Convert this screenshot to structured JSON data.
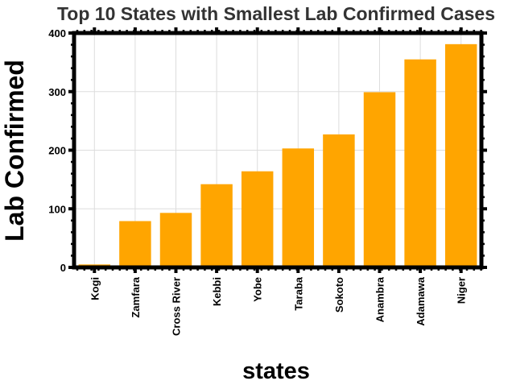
{
  "chart_data": {
    "type": "bar",
    "title": "Top 10 States with Smallest Lab Confirmed Cases",
    "xlabel": "states",
    "ylabel": "Lab Confirmed",
    "categories": [
      "Kogi",
      "Zamfara",
      "Cross River",
      "Kebbi",
      "Yobe",
      "Taraba",
      "Sokoto",
      "Anambra",
      "Adamawa",
      "Niger"
    ],
    "values": [
      5,
      79,
      93,
      142,
      164,
      203,
      227,
      299,
      355,
      381
    ],
    "ylim": [
      0,
      400
    ],
    "yticks": [
      "0",
      "100",
      "200",
      "300",
      "400"
    ],
    "bar_color": "#ffa500",
    "grid": true
  }
}
